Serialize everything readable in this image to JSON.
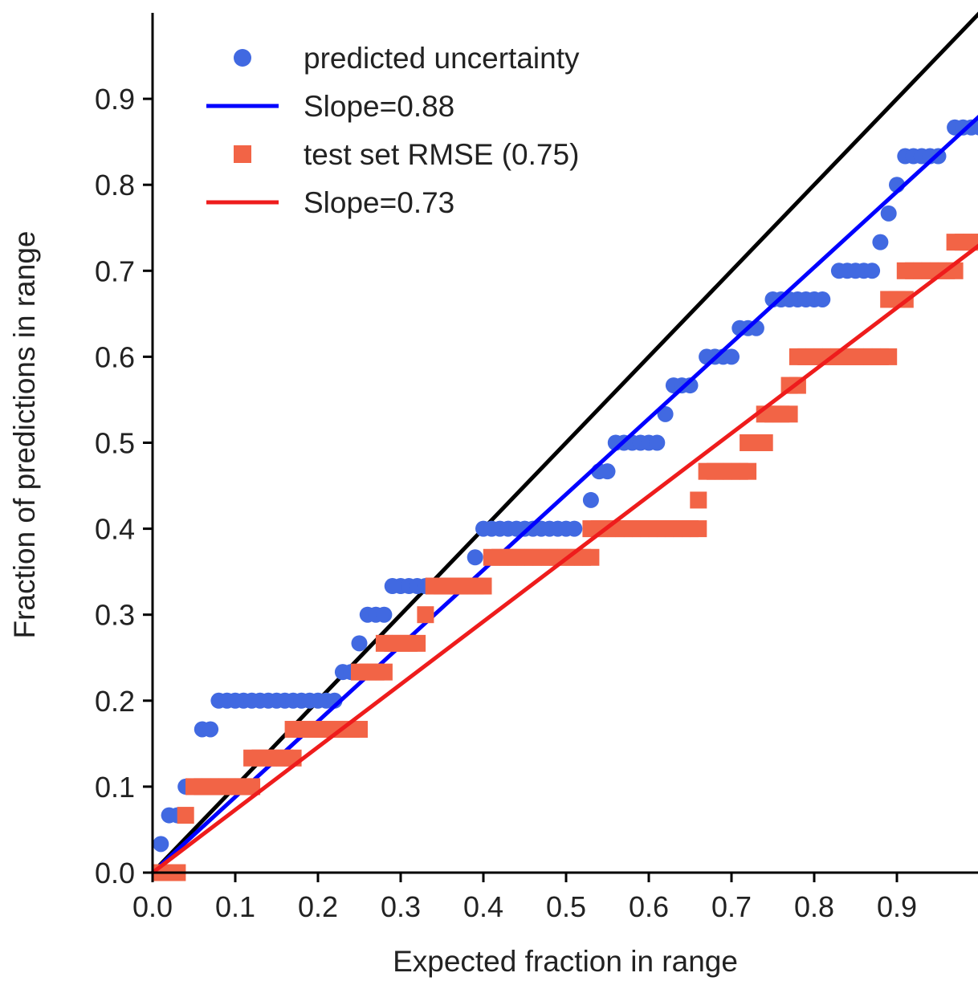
{
  "chart_data": {
    "type": "scatter",
    "xlabel": "Expected fraction in range",
    "ylabel": "Fraction of predictions in range",
    "xlim": [
      0.0,
      1.0
    ],
    "ylim": [
      0.0,
      1.0
    ],
    "x_ticks": [
      "0.0",
      "0.1",
      "0.2",
      "0.3",
      "0.4",
      "0.5",
      "0.6",
      "0.7",
      "0.8",
      "0.9"
    ],
    "y_ticks": [
      "0.0",
      "0.1",
      "0.2",
      "0.3",
      "0.4",
      "0.5",
      "0.6",
      "0.7",
      "0.8",
      "0.9"
    ],
    "grid": false,
    "legend_position": "top-left",
    "reference_line": {
      "color": "#000000",
      "slope": 1.0
    },
    "series": [
      {
        "name": "predicted uncertainty",
        "kind": "scatter",
        "marker": "circle",
        "color": "#4169e1",
        "steps": [
          {
            "y": 0.0333,
            "x": [
              0.01
            ]
          },
          {
            "y": 0.0667,
            "x": [
              0.02,
              0.03
            ]
          },
          {
            "y": 0.1,
            "x": [
              0.04,
              0.05
            ]
          },
          {
            "y": 0.1667,
            "x": [
              0.06,
              0.07
            ]
          },
          {
            "y": 0.2,
            "x": [
              0.08,
              0.09,
              0.1,
              0.11,
              0.12,
              0.13,
              0.14,
              0.15,
              0.16,
              0.17,
              0.18,
              0.19,
              0.2,
              0.21,
              0.22
            ]
          },
          {
            "y": 0.2333,
            "x": [
              0.23,
              0.24
            ]
          },
          {
            "y": 0.2667,
            "x": [
              0.25
            ]
          },
          {
            "y": 0.3,
            "x": [
              0.26,
              0.27,
              0.28
            ]
          },
          {
            "y": 0.3333,
            "x": [
              0.29,
              0.3,
              0.31,
              0.32,
              0.33
            ]
          },
          {
            "y": 0.3667,
            "x": [
              0.39
            ]
          },
          {
            "y": 0.4,
            "x": [
              0.4,
              0.41,
              0.42,
              0.43,
              0.44,
              0.45,
              0.46,
              0.47,
              0.48,
              0.49,
              0.5,
              0.51
            ]
          },
          {
            "y": 0.4333,
            "x": [
              0.53
            ]
          },
          {
            "y": 0.4667,
            "x": [
              0.54,
              0.55
            ]
          },
          {
            "y": 0.5,
            "x": [
              0.56,
              0.57,
              0.58,
              0.59,
              0.6,
              0.61
            ]
          },
          {
            "y": 0.5333,
            "x": [
              0.62
            ]
          },
          {
            "y": 0.5667,
            "x": [
              0.63,
              0.64,
              0.65
            ]
          },
          {
            "y": 0.6,
            "x": [
              0.67,
              0.68,
              0.69,
              0.7
            ]
          },
          {
            "y": 0.6333,
            "x": [
              0.71,
              0.72,
              0.73
            ]
          },
          {
            "y": 0.6667,
            "x": [
              0.75,
              0.76,
              0.77,
              0.78,
              0.79,
              0.8,
              0.81
            ]
          },
          {
            "y": 0.7,
            "x": [
              0.83,
              0.84,
              0.85,
              0.86,
              0.87
            ]
          },
          {
            "y": 0.7333,
            "x": [
              0.88
            ]
          },
          {
            "y": 0.7667,
            "x": [
              0.89
            ]
          },
          {
            "y": 0.8,
            "x": [
              0.9
            ]
          },
          {
            "y": 0.8333,
            "x": [
              0.91,
              0.92,
              0.93,
              0.94,
              0.95
            ]
          },
          {
            "y": 0.8667,
            "x": [
              0.97,
              0.98,
              0.99,
              1.0
            ]
          }
        ]
      },
      {
        "name": "Slope=0.88",
        "kind": "line",
        "color": "#0000ff",
        "slope": 0.88
      },
      {
        "name": "test set RMSE (0.75)",
        "kind": "scatter",
        "marker": "square",
        "color": "#f26446",
        "steps": [
          {
            "y": 0.0,
            "x": [
              0.01,
              0.02,
              0.03
            ]
          },
          {
            "y": 0.0667,
            "x": [
              0.04
            ]
          },
          {
            "y": 0.1,
            "x": [
              0.05,
              0.06,
              0.07,
              0.08,
              0.09,
              0.1,
              0.11,
              0.12
            ]
          },
          {
            "y": 0.1333,
            "x": [
              0.12,
              0.13,
              0.14,
              0.15,
              0.16,
              0.17
            ]
          },
          {
            "y": 0.1667,
            "x": [
              0.17,
              0.18,
              0.19,
              0.2,
              0.21,
              0.22,
              0.23,
              0.24,
              0.25
            ]
          },
          {
            "y": 0.2333,
            "x": [
              0.25,
              0.26,
              0.27,
              0.28
            ]
          },
          {
            "y": 0.2667,
            "x": [
              0.28,
              0.29,
              0.3,
              0.31,
              0.32
            ]
          },
          {
            "y": 0.3,
            "x": [
              0.33
            ]
          },
          {
            "y": 0.3333,
            "x": [
              0.34,
              0.35,
              0.36,
              0.37,
              0.38,
              0.39,
              0.4
            ]
          },
          {
            "y": 0.3667,
            "x": [
              0.41,
              0.42,
              0.43,
              0.44,
              0.45,
              0.46,
              0.47,
              0.48,
              0.49,
              0.5,
              0.51,
              0.52,
              0.53
            ]
          },
          {
            "y": 0.4,
            "x": [
              0.53,
              0.54,
              0.55,
              0.56,
              0.57,
              0.58,
              0.59,
              0.6,
              0.61,
              0.62,
              0.63,
              0.64,
              0.65,
              0.66
            ]
          },
          {
            "y": 0.4333,
            "x": [
              0.66
            ]
          },
          {
            "y": 0.4667,
            "x": [
              0.67,
              0.68,
              0.69,
              0.7,
              0.71,
              0.72
            ]
          },
          {
            "y": 0.5,
            "x": [
              0.72,
              0.73,
              0.74
            ]
          },
          {
            "y": 0.5333,
            "x": [
              0.74,
              0.75,
              0.76,
              0.77
            ]
          },
          {
            "y": 0.5667,
            "x": [
              0.77,
              0.78
            ]
          },
          {
            "y": 0.6,
            "x": [
              0.78,
              0.79,
              0.8,
              0.81,
              0.82,
              0.83,
              0.84,
              0.85,
              0.86,
              0.87,
              0.88,
              0.89
            ]
          },
          {
            "y": 0.6667,
            "x": [
              0.89,
              0.9,
              0.91
            ]
          },
          {
            "y": 0.7,
            "x": [
              0.91,
              0.92,
              0.93,
              0.94,
              0.95,
              0.96,
              0.97
            ]
          },
          {
            "y": 0.7333,
            "x": [
              0.97,
              0.98,
              0.99,
              1.0
            ]
          }
        ]
      },
      {
        "name": "Slope=0.73",
        "kind": "line",
        "color": "#ee1c1c",
        "slope": 0.73
      }
    ]
  }
}
